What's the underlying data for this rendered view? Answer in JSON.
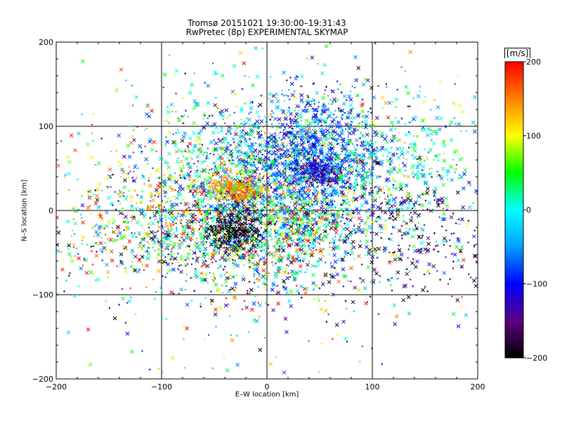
{
  "chart_data": {
    "type": "scatter",
    "title": "Tromsø 20151021 19:30:00–19:31:43",
    "subtitle": "RwPretec (8p) EXPERIMENTAL SKYMAP",
    "xlabel": "E–W location [km]",
    "ylabel": "N–S location [km]",
    "xlim": [
      -200,
      200
    ],
    "ylim": [
      -200,
      200
    ],
    "xticks": [
      -200,
      -100,
      0,
      100,
      200
    ],
    "yticks": [
      -200,
      -100,
      0,
      100,
      200
    ],
    "grid": true,
    "colorbar": {
      "label": "[m/s]",
      "range": [
        -200,
        200
      ],
      "ticks": [
        200,
        100,
        0,
        -100,
        -200
      ],
      "colormap": [
        "#000000",
        "#5a0080",
        "#0000ff",
        "#00a0ff",
        "#00ffff",
        "#00ff00",
        "#ffff00",
        "#ff8000",
        "#ff0000"
      ]
    },
    "markers": [
      "x (large)",
      "+ (small)",
      "dot"
    ],
    "clusters": [
      {
        "x": 0,
        "y": 30,
        "sx": 60,
        "sy": 55,
        "n": 1900,
        "v_mean": -10,
        "v_sd": 90
      },
      {
        "x": 45,
        "y": 70,
        "sx": 35,
        "sy": 35,
        "n": 800,
        "v_mean": -80,
        "v_sd": 40
      },
      {
        "x": 50,
        "y": 45,
        "sx": 12,
        "sy": 8,
        "n": 250,
        "v_mean": -120,
        "v_sd": 30
      },
      {
        "x": -30,
        "y": 25,
        "sx": 12,
        "sy": 7,
        "n": 300,
        "v_mean": 140,
        "v_sd": 30
      },
      {
        "x": 0,
        "y": -25,
        "sx": 55,
        "sy": 35,
        "n": 900,
        "v_mean": 0,
        "v_sd": 120
      },
      {
        "x": -30,
        "y": -25,
        "sx": 14,
        "sy": 12,
        "n": 250,
        "v_mean": -200,
        "v_sd": 20
      },
      {
        "x": -110,
        "y": -20,
        "sx": 50,
        "sy": 40,
        "n": 500,
        "v_mean": 30,
        "v_sd": 140
      },
      {
        "x": 120,
        "y": 50,
        "sx": 45,
        "sy": 40,
        "n": 350,
        "v_mean": 10,
        "v_sd": 50
      },
      {
        "x": 140,
        "y": -30,
        "sx": 45,
        "sy": 40,
        "n": 250,
        "v_mean": -170,
        "v_sd": 50
      },
      {
        "x": 0,
        "y": 0,
        "sx": 110,
        "sy": 100,
        "n": 600,
        "v_mean": 0,
        "v_sd": 130
      }
    ]
  }
}
